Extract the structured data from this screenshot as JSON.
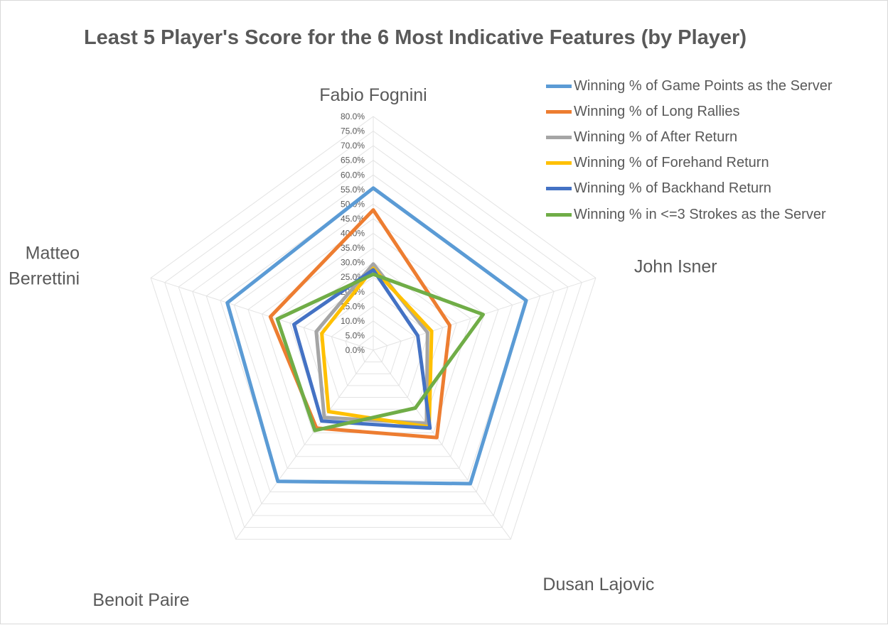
{
  "chart_data": {
    "type": "radar",
    "title": "Least 5 Player's Score for the 6 Most Indicative Features (by Player)",
    "categories": [
      "Fabio Fognini",
      "John Isner",
      "Dusan Lajovic",
      "Benoit Paire",
      "Matteo Berrettini"
    ],
    "ylim": [
      0,
      80
    ],
    "tick_labels": [
      "0.0%",
      "5.0%",
      "10.0%",
      "15.0%",
      "20.0%",
      "25.0%",
      "30.0%",
      "35.0%",
      "40.0%",
      "45.0%",
      "50.0%",
      "55.0%",
      "60.0%",
      "65.0%",
      "70.0%",
      "75.0%",
      "80.0%"
    ],
    "grid": true,
    "legend_position": "top-right",
    "series": [
      {
        "name": "Winning % of Game Points as the Server",
        "color": "#5B9BD5",
        "values": [
          55.5,
          55.0,
          56.5,
          55.5,
          52.5
        ]
      },
      {
        "name": "Winning % of Long Rallies",
        "color": "#ED7D31",
        "values": [
          48.0,
          27.5,
          37.0,
          33.0,
          37.0
        ]
      },
      {
        "name": "Winning % of After Return",
        "color": "#A5A5A5",
        "values": [
          29.5,
          19.5,
          31.0,
          28.5,
          20.5
        ]
      },
      {
        "name": "Winning % of Forehand Return",
        "color": "#FFC000",
        "values": [
          28.0,
          21.0,
          32.5,
          26.0,
          18.5
        ]
      },
      {
        "name": "Winning % of Backhand Return",
        "color": "#4472C4",
        "values": [
          27.5,
          16.0,
          33.0,
          30.0,
          28.5
        ]
      },
      {
        "name": "Winning % in <=3 Strokes as the Server",
        "color": "#70AD47",
        "values": [
          26.0,
          39.5,
          24.5,
          34.0,
          34.5
        ]
      }
    ],
    "category_label_lines": [
      [
        "Fabio Fognini"
      ],
      [
        "John Isner"
      ],
      [
        "Dusan Lajovic"
      ],
      [
        "Benoit Paire"
      ],
      [
        "Matteo",
        "Berrettini"
      ]
    ]
  }
}
